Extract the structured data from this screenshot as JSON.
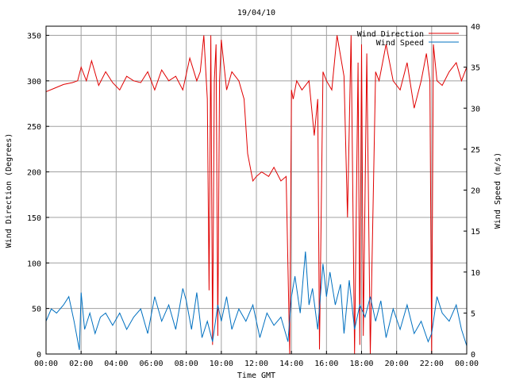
{
  "chart_data": {
    "type": "line",
    "title": "19/04/10",
    "xlabel": "Time GMT",
    "ylabel_left": "Wind Direction (Degrees)",
    "ylabel_right": "Wind Speed (m/s)",
    "grid": true,
    "legend_position": "top-right",
    "x_range_hours": [
      0,
      24
    ],
    "x_ticks": [
      {
        "hour": 0,
        "label": "00:00"
      },
      {
        "hour": 2,
        "label": "02:00"
      },
      {
        "hour": 4,
        "label": "04:00"
      },
      {
        "hour": 6,
        "label": "06:00"
      },
      {
        "hour": 8,
        "label": "08:00"
      },
      {
        "hour": 10,
        "label": "10:00"
      },
      {
        "hour": 12,
        "label": "12:00"
      },
      {
        "hour": 14,
        "label": "14:00"
      },
      {
        "hour": 16,
        "label": "16:00"
      },
      {
        "hour": 18,
        "label": "18:00"
      },
      {
        "hour": 20,
        "label": "20:00"
      },
      {
        "hour": 22,
        "label": "22:00"
      },
      {
        "hour": 24,
        "label": "00:00"
      }
    ],
    "y_left": {
      "min": 0,
      "max": 360,
      "ticks": [
        0,
        50,
        100,
        150,
        200,
        250,
        300,
        350
      ]
    },
    "y_right": {
      "min": 0,
      "max": 40,
      "ticks": [
        0,
        5,
        10,
        15,
        20,
        25,
        30,
        35,
        40
      ]
    },
    "series": [
      {
        "name": "Wind Direction",
        "axis": "left",
        "color": "#e00000",
        "x": [
          0.0,
          0.5,
          1.0,
          1.5,
          1.8,
          2.0,
          2.3,
          2.6,
          3.0,
          3.4,
          3.8,
          4.2,
          4.6,
          5.0,
          5.4,
          5.8,
          6.2,
          6.6,
          7.0,
          7.4,
          7.8,
          8.2,
          8.6,
          8.8,
          9.0,
          9.2,
          9.3,
          9.4,
          9.5,
          9.6,
          9.7,
          9.8,
          9.9,
          10.0,
          10.3,
          10.6,
          11.0,
          11.3,
          11.5,
          11.8,
          12.0,
          12.3,
          12.7,
          13.0,
          13.4,
          13.7,
          13.9,
          14.0,
          14.1,
          14.3,
          14.6,
          15.0,
          15.3,
          15.5,
          15.6,
          15.8,
          16.0,
          16.3,
          16.6,
          17.0,
          17.2,
          17.4,
          17.6,
          17.8,
          17.9,
          18.0,
          18.1,
          18.3,
          18.5,
          18.8,
          19.0,
          19.4,
          19.8,
          20.2,
          20.6,
          21.0,
          21.4,
          21.7,
          21.9,
          22.0,
          22.1,
          22.3,
          22.6,
          23.0,
          23.4,
          23.7,
          24.0
        ],
        "values": [
          288,
          292,
          296,
          298,
          300,
          315,
          300,
          322,
          295,
          310,
          298,
          290,
          305,
          300,
          298,
          310,
          290,
          312,
          300,
          305,
          290,
          325,
          300,
          310,
          350,
          280,
          70,
          350,
          10,
          300,
          340,
          20,
          300,
          345,
          290,
          310,
          300,
          280,
          220,
          190,
          195,
          200,
          195,
          205,
          190,
          195,
          0,
          290,
          280,
          300,
          290,
          300,
          240,
          280,
          5,
          310,
          300,
          290,
          350,
          305,
          150,
          350,
          0,
          320,
          10,
          340,
          20,
          330,
          0,
          310,
          300,
          340,
          300,
          290,
          320,
          270,
          300,
          330,
          300,
          0,
          340,
          300,
          295,
          310,
          320,
          300,
          315
        ]
      },
      {
        "name": "Wind Speed",
        "axis": "right",
        "color": "#0070c0",
        "x": [
          0.0,
          0.3,
          0.6,
          1.0,
          1.3,
          1.6,
          1.9,
          2.0,
          2.2,
          2.5,
          2.8,
          3.1,
          3.4,
          3.8,
          4.2,
          4.6,
          5.0,
          5.4,
          5.8,
          6.2,
          6.6,
          7.0,
          7.4,
          7.8,
          8.0,
          8.3,
          8.6,
          8.9,
          9.2,
          9.5,
          9.8,
          10.0,
          10.3,
          10.6,
          11.0,
          11.4,
          11.8,
          12.2,
          12.6,
          13.0,
          13.4,
          13.8,
          14.0,
          14.2,
          14.5,
          14.8,
          15.0,
          15.2,
          15.5,
          15.8,
          16.0,
          16.2,
          16.5,
          16.8,
          17.0,
          17.3,
          17.6,
          17.9,
          18.2,
          18.5,
          18.8,
          19.1,
          19.4,
          19.8,
          20.2,
          20.6,
          21.0,
          21.4,
          21.8,
          22.0,
          22.3,
          22.6,
          23.0,
          23.4,
          23.7,
          24.0
        ],
        "values": [
          4.0,
          5.5,
          5.0,
          6.0,
          7.0,
          4.0,
          0.5,
          7.5,
          3.0,
          5.0,
          2.5,
          4.5,
          5.0,
          3.5,
          5.0,
          3.0,
          4.5,
          5.5,
          2.5,
          7.0,
          4.0,
          6.0,
          3.0,
          8.0,
          6.5,
          3.0,
          7.5,
          2.0,
          4.0,
          1.5,
          6.0,
          4.0,
          7.0,
          3.0,
          5.5,
          4.0,
          6.0,
          2.0,
          5.0,
          3.5,
          4.5,
          1.5,
          7.0,
          9.5,
          5.0,
          12.5,
          6.0,
          8.0,
          3.0,
          11.0,
          7.0,
          10.0,
          6.0,
          8.5,
          2.5,
          9.0,
          3.0,
          6.0,
          4.5,
          7.0,
          4.0,
          6.5,
          2.0,
          5.5,
          3.0,
          6.0,
          2.5,
          4.0,
          1.5,
          2.5,
          7.0,
          5.0,
          4.0,
          6.0,
          3.0,
          1.0
        ]
      }
    ]
  }
}
